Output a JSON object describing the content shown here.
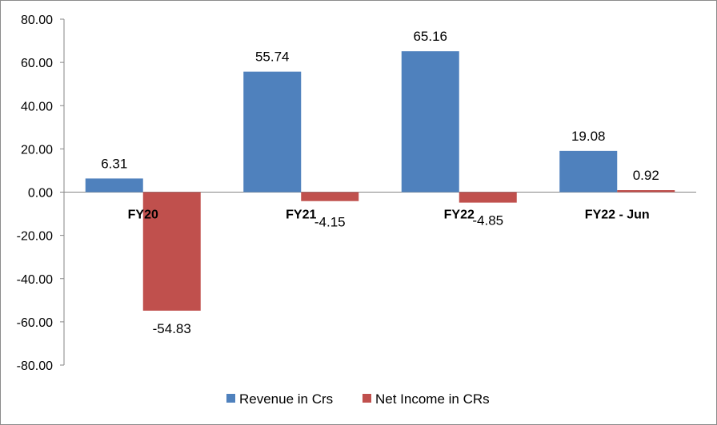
{
  "chart_data": {
    "type": "bar",
    "categories": [
      "FY20",
      "FY21",
      "FY22",
      "FY22 - Jun"
    ],
    "series": [
      {
        "name": "Revenue in Crs",
        "values": [
          6.31,
          55.74,
          65.16,
          19.08
        ],
        "labels": [
          "6.31",
          "55.74",
          "65.16",
          "19.08"
        ],
        "color": "#4f81bd"
      },
      {
        "name": "Net Income in CRs",
        "values": [
          -54.83,
          -4.15,
          -4.85,
          0.92
        ],
        "labels": [
          "-54.83",
          "-4.15",
          "-4.85",
          "0.92"
        ],
        "color": "#c0504d"
      }
    ],
    "ylim": [
      -80,
      80
    ],
    "yticks": [
      80,
      60,
      40,
      20,
      0,
      -20,
      -40,
      -60,
      -80
    ],
    "ytick_labels": [
      "80.00",
      "60.00",
      "40.00",
      "20.00",
      "0.00",
      "-20.00",
      "-40.00",
      "-60.00",
      "-80.00"
    ],
    "grid": false,
    "legend_position": "bottom"
  }
}
